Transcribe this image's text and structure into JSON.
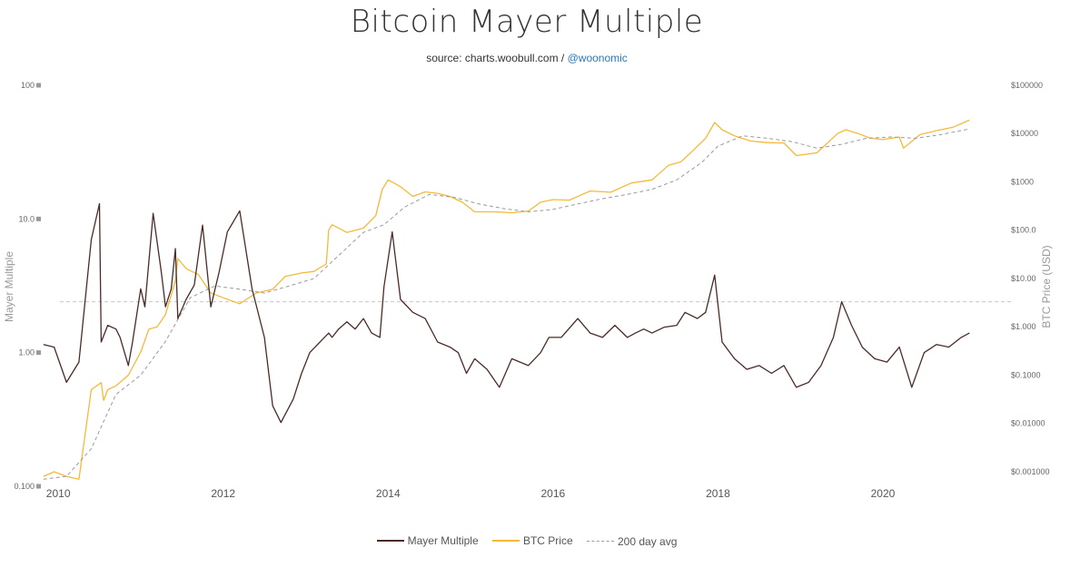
{
  "chart_data": {
    "type": "line",
    "title": "Bitcoin Mayer Multiple",
    "subtitle_source": "source: charts.woobull.com / ",
    "subtitle_link": "@woonomic",
    "ylabel_left": "Mayer Multiple",
    "ylabel_right": "BTC Price (USD)",
    "left_axis": {
      "scale": "log",
      "ylim": [
        0.1,
        100
      ],
      "ticks": [
        "100",
        "10.0",
        "1.00",
        "0.100"
      ],
      "tick_values": [
        100,
        10,
        1,
        0.1
      ]
    },
    "right_axis": {
      "scale": "log",
      "ylim": [
        0.0005,
        100000
      ],
      "ticks": [
        "$100000",
        "$10000",
        "$1000",
        "$100.0",
        "$10.00",
        "$1.000",
        "$0.1000",
        "$0.01000",
        "$0.001000"
      ],
      "tick_values": [
        100000,
        10000,
        1000,
        100,
        10,
        1,
        0.1,
        0.01,
        0.001
      ]
    },
    "x_axis": {
      "xlim": [
        2009.8,
        2021.3
      ],
      "ticks": [
        "2010",
        "2012",
        "2014",
        "2016",
        "2018",
        "2020"
      ],
      "tick_values": [
        2010,
        2012,
        2014,
        2016,
        2018,
        2020
      ]
    },
    "reference_line": {
      "axis": "left",
      "value": 2.4
    },
    "colors": {
      "mayer": "#4a2c27",
      "price": "#f5b93a",
      "avg": "#9a9a9a",
      "refline": "#c8c8c8"
    },
    "series": [
      {
        "name": "Mayer Multiple",
        "axis": "left",
        "x": [
          2009.82,
          2009.95,
          2010.1,
          2010.25,
          2010.4,
          2010.5,
          2010.52,
          2010.6,
          2010.7,
          2010.75,
          2010.85,
          2010.9,
          2011.0,
          2011.05,
          2011.15,
          2011.25,
          2011.3,
          2011.37,
          2011.42,
          2011.45,
          2011.55,
          2011.65,
          2011.75,
          2011.85,
          2011.95,
          2012.05,
          2012.2,
          2012.35,
          2012.5,
          2012.6,
          2012.7,
          2012.85,
          2012.95,
          2013.05,
          2013.2,
          2013.28,
          2013.32,
          2013.4,
          2013.5,
          2013.6,
          2013.7,
          2013.8,
          2013.9,
          2013.95,
          2014.05,
          2014.15,
          2014.3,
          2014.45,
          2014.6,
          2014.75,
          2014.85,
          2014.95,
          2015.05,
          2015.2,
          2015.35,
          2015.5,
          2015.6,
          2015.7,
          2015.85,
          2015.95,
          2016.1,
          2016.3,
          2016.45,
          2016.6,
          2016.75,
          2016.9,
          2017.0,
          2017.1,
          2017.2,
          2017.35,
          2017.5,
          2017.6,
          2017.75,
          2017.85,
          2017.96,
          2018.05,
          2018.2,
          2018.35,
          2018.5,
          2018.65,
          2018.8,
          2018.95,
          2019.1,
          2019.25,
          2019.4,
          2019.5,
          2019.62,
          2019.75,
          2019.9,
          2020.05,
          2020.2,
          2020.35,
          2020.5,
          2020.65,
          2020.8,
          2020.95,
          2021.05
        ],
        "y": [
          1.15,
          1.1,
          0.6,
          0.85,
          7.0,
          13.0,
          1.2,
          1.6,
          1.5,
          1.3,
          0.8,
          1.2,
          3.0,
          2.2,
          11.0,
          4.0,
          2.2,
          3.0,
          6.0,
          1.8,
          2.5,
          3.2,
          9.0,
          2.2,
          4.0,
          8.0,
          11.5,
          3.0,
          1.3,
          0.4,
          0.3,
          0.45,
          0.7,
          1.0,
          1.25,
          1.4,
          1.3,
          1.5,
          1.7,
          1.5,
          1.8,
          1.4,
          1.3,
          3.1,
          8.0,
          2.5,
          2.0,
          1.8,
          1.2,
          1.1,
          1.0,
          0.7,
          0.9,
          0.75,
          0.55,
          0.9,
          0.85,
          0.8,
          1.0,
          1.3,
          1.3,
          1.8,
          1.4,
          1.3,
          1.6,
          1.3,
          1.4,
          1.5,
          1.4,
          1.55,
          1.6,
          2.0,
          1.8,
          2.0,
          3.8,
          1.2,
          0.9,
          0.75,
          0.8,
          0.7,
          0.8,
          0.55,
          0.6,
          0.8,
          1.3,
          2.4,
          1.6,
          1.1,
          0.9,
          0.85,
          1.1,
          0.55,
          1.0,
          1.15,
          1.1,
          1.3,
          1.4
        ]
      },
      {
        "name": "BTC Price",
        "axis": "right",
        "x": [
          2009.82,
          2009.95,
          2010.1,
          2010.25,
          2010.4,
          2010.52,
          2010.55,
          2010.6,
          2010.7,
          2010.85,
          2011.0,
          2011.1,
          2011.2,
          2011.3,
          2011.42,
          2011.45,
          2011.55,
          2011.7,
          2011.85,
          2012.0,
          2012.2,
          2012.4,
          2012.6,
          2012.75,
          2012.95,
          2013.1,
          2013.25,
          2013.28,
          2013.32,
          2013.5,
          2013.7,
          2013.85,
          2013.93,
          2014.0,
          2014.15,
          2014.3,
          2014.45,
          2014.6,
          2014.75,
          2014.9,
          2015.05,
          2015.3,
          2015.5,
          2015.7,
          2015.85,
          2016.0,
          2016.2,
          2016.45,
          2016.7,
          2016.95,
          2017.2,
          2017.4,
          2017.55,
          2017.7,
          2017.85,
          2017.96,
          2018.05,
          2018.2,
          2018.4,
          2018.6,
          2018.8,
          2018.95,
          2019.2,
          2019.45,
          2019.55,
          2019.7,
          2019.85,
          2020.0,
          2020.2,
          2020.25,
          2020.45,
          2020.65,
          2020.85,
          2021.05
        ],
        "y": [
          0.0008,
          0.001,
          0.0008,
          0.0007,
          0.05,
          0.07,
          0.03,
          0.05,
          0.06,
          0.1,
          0.3,
          0.9,
          1.0,
          1.8,
          9.0,
          26.0,
          16.0,
          12.0,
          5.0,
          4.0,
          3.0,
          5.0,
          6.0,
          11.0,
          13.0,
          14.0,
          20.0,
          100.0,
          130.0,
          90.0,
          110.0,
          200.0,
          700.0,
          1100.0,
          800.0,
          500.0,
          620.0,
          580.0,
          500.0,
          380.0,
          240.0,
          240.0,
          230.0,
          250.0,
          380.0,
          430.0,
          420.0,
          650.0,
          610.0,
          950.0,
          1100.0,
          2200.0,
          2600.0,
          4500.0,
          8000.0,
          17000.0,
          12000.0,
          9000.0,
          7000.0,
          6500.0,
          6400.0,
          3500.0,
          4000.0,
          10000.0,
          12000.0,
          10000.0,
          8000.0,
          7500.0,
          8500.0,
          5000.0,
          9500.0,
          11500.0,
          13500.0,
          19000.0
        ]
      },
      {
        "name": "200 day avg",
        "axis": "right",
        "x": [
          2009.82,
          2010.1,
          2010.4,
          2010.7,
          2011.0,
          2011.3,
          2011.6,
          2011.9,
          2012.2,
          2012.5,
          2012.8,
          2013.1,
          2013.4,
          2013.7,
          2013.95,
          2014.2,
          2014.5,
          2014.8,
          2015.1,
          2015.4,
          2015.7,
          2016.0,
          2016.3,
          2016.6,
          2016.9,
          2017.2,
          2017.5,
          2017.8,
          2018.0,
          2018.3,
          2018.6,
          2018.9,
          2019.2,
          2019.5,
          2019.8,
          2020.1,
          2020.4,
          2020.7,
          2021.05
        ],
        "y": [
          0.0007,
          0.0008,
          0.003,
          0.04,
          0.1,
          0.5,
          4.0,
          7.0,
          6.0,
          5.0,
          7.0,
          10.0,
          30.0,
          90.0,
          130.0,
          300.0,
          550.0,
          480.0,
          350.0,
          280.0,
          240.0,
          270.0,
          350.0,
          450.0,
          550.0,
          700.0,
          1100.0,
          2500.0,
          5500.0,
          9000.0,
          8000.0,
          6800.0,
          5000.0,
          6000.0,
          8000.0,
          8500.0,
          8000.0,
          9500.0,
          12500.0
        ]
      }
    ]
  }
}
